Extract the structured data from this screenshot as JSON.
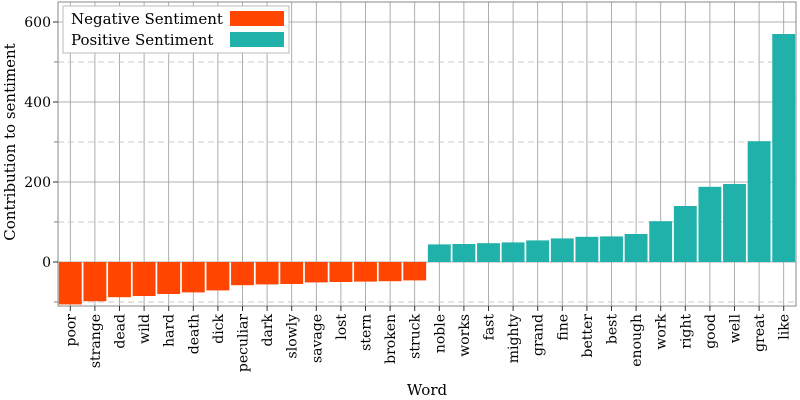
{
  "chart_data": {
    "type": "bar",
    "xlabel": "Word",
    "ylabel": "Contribution to sentiment",
    "ylim": [
      -110,
      650
    ],
    "yticks": [
      0,
      200,
      400,
      600
    ],
    "minor_gridlines": [
      -100,
      100,
      300,
      500
    ],
    "legend_position": "top-left",
    "series": [
      {
        "name": "Negative Sentiment",
        "color": "#ff4500"
      },
      {
        "name": "Positive Sentiment",
        "color": "#20b2aa"
      }
    ],
    "categories": [
      "poor",
      "strange",
      "dead",
      "wild",
      "hard",
      "death",
      "dick",
      "peculiar",
      "dark",
      "slowly",
      "savage",
      "lost",
      "stern",
      "broken",
      "struck",
      "noble",
      "works",
      "fast",
      "mighty",
      "grand",
      "fine",
      "better",
      "best",
      "enough",
      "work",
      "right",
      "good",
      "well",
      "great",
      "like"
    ],
    "values": [
      -106,
      -98,
      -88,
      -85,
      -80,
      -76,
      -71,
      -58,
      -56,
      -55,
      -51,
      -50,
      -49,
      -48,
      -46,
      44,
      45,
      47,
      49,
      54,
      59,
      63,
      64,
      70,
      102,
      140,
      188,
      195,
      302,
      570
    ]
  }
}
